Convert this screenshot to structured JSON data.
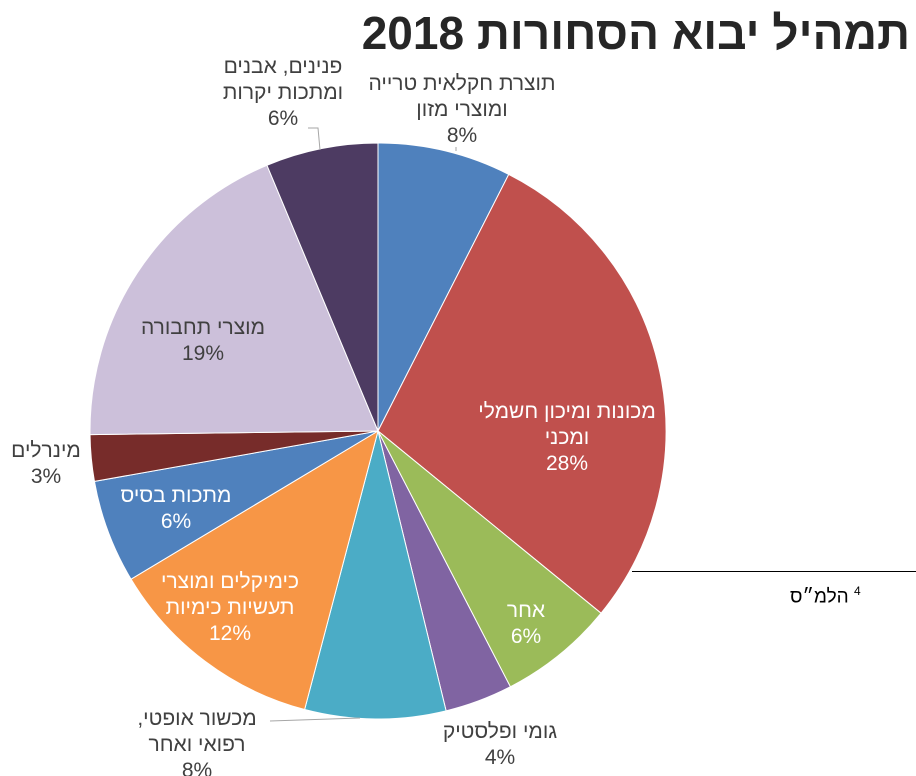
{
  "chart_data": {
    "type": "pie",
    "title": "תמהיל יבוא הסחורות 2018",
    "slices": [
      {
        "label_lines": [
          "תוצרת חקלאית טרייה",
          "ומוצרי מזון"
        ],
        "value_label": "8%",
        "value": 7.5,
        "color": "#4F81BD"
      },
      {
        "label_lines": [
          "מכונות ומיכון חשמלי",
          "ומכני"
        ],
        "value_label": "28%",
        "value": 28.4,
        "color": "#C0504D"
      },
      {
        "label_lines": [
          "אחר"
        ],
        "value_label": "6%",
        "value": 6.5,
        "color": "#9BBB59"
      },
      {
        "label_lines": [
          "גומי ופלסטיק"
        ],
        "value_label": "4%",
        "value": 3.8,
        "color": "#8064A2"
      },
      {
        "label_lines": [
          "מכשור אופטי,",
          "רפואי ואחר"
        ],
        "value_label": "8%",
        "value": 7.9,
        "color": "#4BACC6"
      },
      {
        "label_lines": [
          "כימיקלים ומוצרי",
          "תעשיות כימיות"
        ],
        "value_label": "12%",
        "value": 12.3,
        "color": "#F79646"
      },
      {
        "label_lines": [
          "מתכות בסיס"
        ],
        "value_label": "6%",
        "value": 5.8,
        "color": "#4F81BD"
      },
      {
        "label_lines": [
          "מינרלים"
        ],
        "value_label": "3%",
        "value": 2.6,
        "color": "#772C2A"
      },
      {
        "label_lines": [
          "מוצרי תחבורה"
        ],
        "value_label": "19%",
        "value": 18.9,
        "color": "#CCC0DA"
      },
      {
        "label_lines": [
          "פנינים, אבנים",
          "ומתכות יקרות"
        ],
        "value_label": "6%",
        "value": 6.3,
        "color": "#4D3B62"
      }
    ]
  },
  "footnote": {
    "number": "4",
    "text": "הלמ״ס"
  }
}
